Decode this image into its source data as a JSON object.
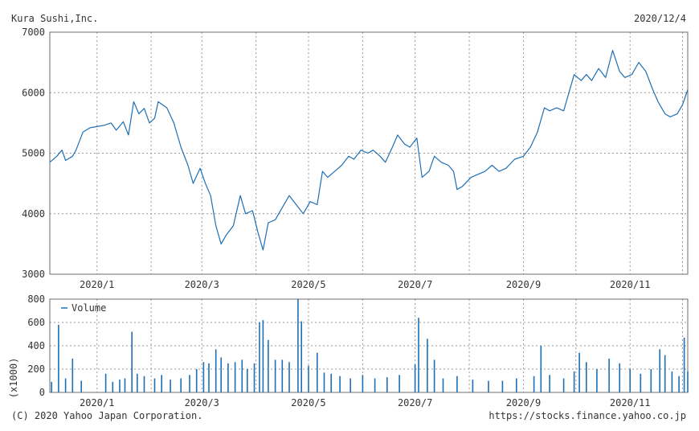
{
  "header": {
    "company": "Kura Sushi,Inc.",
    "date": "2020/12/4"
  },
  "footer": {
    "copyright": "(C) 2020 Yahoo Japan Corporation.",
    "url": "https://stocks.finance.yahoo.co.jp"
  },
  "colors": {
    "line": "#1f6fb5",
    "bar": "#1f6fb5"
  },
  "chart_data": [
    {
      "type": "line",
      "name": "price",
      "ylim": [
        3000,
        7000
      ],
      "yticks": [
        "3000",
        "4000",
        "5000",
        "6000",
        "7000"
      ],
      "xticks": [
        "2020/1",
        "2020/3",
        "2020/5",
        "2020/7",
        "2020/9",
        "2020/11"
      ],
      "xlim": [
        "2019-12-05",
        "2020-12-04"
      ],
      "grid": true,
      "series_points": [
        [
          "2019-12-05",
          4850
        ],
        [
          "2019-12-09",
          4950
        ],
        [
          "2019-12-12",
          5050
        ],
        [
          "2019-12-14",
          4880
        ],
        [
          "2019-12-18",
          4950
        ],
        [
          "2019-12-20",
          5050
        ],
        [
          "2019-12-24",
          5350
        ],
        [
          "2019-12-28",
          5420
        ],
        [
          "2020-01-05",
          5460
        ],
        [
          "2020-01-09",
          5500
        ],
        [
          "2020-01-12",
          5380
        ],
        [
          "2020-01-16",
          5520
        ],
        [
          "2020-01-19",
          5300
        ],
        [
          "2020-01-22",
          5850
        ],
        [
          "2020-01-25",
          5650
        ],
        [
          "2020-01-28",
          5740
        ],
        [
          "2020-01-31",
          5500
        ],
        [
          "2020-02-03",
          5580
        ],
        [
          "2020-02-05",
          5850
        ],
        [
          "2020-02-10",
          5750
        ],
        [
          "2020-02-14",
          5500
        ],
        [
          "2020-02-18",
          5100
        ],
        [
          "2020-02-22",
          4800
        ],
        [
          "2020-02-25",
          4500
        ],
        [
          "2020-02-29",
          4750
        ],
        [
          "2020-03-03",
          4500
        ],
        [
          "2020-03-06",
          4300
        ],
        [
          "2020-03-09",
          3800
        ],
        [
          "2020-03-12",
          3500
        ],
        [
          "2020-03-15",
          3650
        ],
        [
          "2020-03-19",
          3800
        ],
        [
          "2020-03-23",
          4300
        ],
        [
          "2020-03-26",
          4000
        ],
        [
          "2020-03-30",
          4050
        ],
        [
          "2020-04-02",
          3700
        ],
        [
          "2020-04-05",
          3400
        ],
        [
          "2020-04-08",
          3850
        ],
        [
          "2020-04-12",
          3900
        ],
        [
          "2020-04-16",
          4100
        ],
        [
          "2020-04-20",
          4300
        ],
        [
          "2020-04-24",
          4150
        ],
        [
          "2020-04-28",
          4000
        ],
        [
          "2020-05-02",
          4200
        ],
        [
          "2020-05-06",
          4150
        ],
        [
          "2020-05-09",
          4700
        ],
        [
          "2020-05-12",
          4600
        ],
        [
          "2020-05-16",
          4700
        ],
        [
          "2020-05-20",
          4800
        ],
        [
          "2020-05-24",
          4950
        ],
        [
          "2020-05-27",
          4900
        ],
        [
          "2020-05-31",
          5050
        ],
        [
          "2020-06-04",
          5000
        ],
        [
          "2020-06-07",
          5050
        ],
        [
          "2020-06-11",
          4950
        ],
        [
          "2020-06-14",
          4850
        ],
        [
          "2020-06-18",
          5100
        ],
        [
          "2020-06-21",
          5300
        ],
        [
          "2020-06-25",
          5150
        ],
        [
          "2020-06-28",
          5100
        ],
        [
          "2020-07-02",
          5250
        ],
        [
          "2020-07-05",
          4600
        ],
        [
          "2020-07-09",
          4700
        ],
        [
          "2020-07-12",
          4950
        ],
        [
          "2020-07-16",
          4850
        ],
        [
          "2020-07-20",
          4800
        ],
        [
          "2020-07-23",
          4700
        ],
        [
          "2020-07-25",
          4400
        ],
        [
          "2020-07-28",
          4450
        ],
        [
          "2020-08-02",
          4600
        ],
        [
          "2020-08-06",
          4650
        ],
        [
          "2020-08-10",
          4700
        ],
        [
          "2020-08-14",
          4800
        ],
        [
          "2020-08-18",
          4700
        ],
        [
          "2020-08-22",
          4750
        ],
        [
          "2020-08-27",
          4900
        ],
        [
          "2020-09-01",
          4950
        ],
        [
          "2020-09-05",
          5100
        ],
        [
          "2020-09-09",
          5350
        ],
        [
          "2020-09-13",
          5750
        ],
        [
          "2020-09-16",
          5700
        ],
        [
          "2020-09-20",
          5750
        ],
        [
          "2020-09-24",
          5700
        ],
        [
          "2020-09-27",
          6000
        ],
        [
          "2020-09-30",
          6300
        ],
        [
          "2020-10-04",
          6200
        ],
        [
          "2020-10-07",
          6300
        ],
        [
          "2020-10-10",
          6200
        ],
        [
          "2020-10-14",
          6400
        ],
        [
          "2020-10-18",
          6250
        ],
        [
          "2020-10-22",
          6700
        ],
        [
          "2020-10-26",
          6350
        ],
        [
          "2020-10-29",
          6250
        ],
        [
          "2020-11-02",
          6300
        ],
        [
          "2020-11-06",
          6500
        ],
        [
          "2020-11-10",
          6350
        ],
        [
          "2020-11-14",
          6050
        ],
        [
          "2020-11-17",
          5850
        ],
        [
          "2020-11-21",
          5650
        ],
        [
          "2020-11-24",
          5600
        ],
        [
          "2020-11-28",
          5650
        ],
        [
          "2020-12-01",
          5800
        ],
        [
          "2020-12-04",
          6050
        ]
      ]
    },
    {
      "type": "bar",
      "name": "volume",
      "legend": "Volume",
      "legend_placement": "top-left",
      "ylabel": "(x1000)",
      "ylim": [
        0,
        800
      ],
      "yticks": [
        "0",
        "200",
        "400",
        "600",
        "800"
      ],
      "xticks": [
        "2020/1",
        "2020/3",
        "2020/5",
        "2020/7",
        "2020/9",
        "2020/11"
      ],
      "xlim": [
        "2019-12-05",
        "2020-12-04"
      ],
      "grid": true,
      "series_points": [
        [
          "2019-12-06",
          90
        ],
        [
          "2019-12-10",
          580
        ],
        [
          "2019-12-14",
          120
        ],
        [
          "2019-12-18",
          290
        ],
        [
          "2019-12-23",
          100
        ],
        [
          "2020-01-06",
          160
        ],
        [
          "2020-01-10",
          90
        ],
        [
          "2020-01-14",
          110
        ],
        [
          "2020-01-17",
          120
        ],
        [
          "2020-01-21",
          520
        ],
        [
          "2020-01-24",
          160
        ],
        [
          "2020-01-28",
          140
        ],
        [
          "2020-02-03",
          120
        ],
        [
          "2020-02-07",
          150
        ],
        [
          "2020-02-12",
          110
        ],
        [
          "2020-02-18",
          120
        ],
        [
          "2020-02-23",
          150
        ],
        [
          "2020-02-27",
          200
        ],
        [
          "2020-03-02",
          260
        ],
        [
          "2020-03-05",
          250
        ],
        [
          "2020-03-09",
          370
        ],
        [
          "2020-03-12",
          300
        ],
        [
          "2020-03-16",
          250
        ],
        [
          "2020-03-20",
          260
        ],
        [
          "2020-03-24",
          280
        ],
        [
          "2020-03-27",
          200
        ],
        [
          "2020-03-31",
          250
        ],
        [
          "2020-04-03",
          600
        ],
        [
          "2020-04-05",
          620
        ],
        [
          "2020-04-08",
          450
        ],
        [
          "2020-04-12",
          280
        ],
        [
          "2020-04-16",
          280
        ],
        [
          "2020-04-20",
          260
        ],
        [
          "2020-04-25",
          800
        ],
        [
          "2020-04-27",
          610
        ],
        [
          "2020-05-01",
          230
        ],
        [
          "2020-05-06",
          340
        ],
        [
          "2020-05-10",
          170
        ],
        [
          "2020-05-14",
          160
        ],
        [
          "2020-05-19",
          140
        ],
        [
          "2020-05-25",
          120
        ],
        [
          "2020-06-01",
          150
        ],
        [
          "2020-06-08",
          120
        ],
        [
          "2020-06-15",
          130
        ],
        [
          "2020-06-22",
          150
        ],
        [
          "2020-07-01",
          240
        ],
        [
          "2020-07-03",
          640
        ],
        [
          "2020-07-08",
          460
        ],
        [
          "2020-07-12",
          280
        ],
        [
          "2020-07-17",
          120
        ],
        [
          "2020-07-25",
          140
        ],
        [
          "2020-08-03",
          110
        ],
        [
          "2020-08-12",
          100
        ],
        [
          "2020-08-20",
          100
        ],
        [
          "2020-08-28",
          120
        ],
        [
          "2020-09-07",
          140
        ],
        [
          "2020-09-11",
          400
        ],
        [
          "2020-09-16",
          150
        ],
        [
          "2020-09-24",
          120
        ],
        [
          "2020-09-30",
          180
        ],
        [
          "2020-10-03",
          340
        ],
        [
          "2020-10-07",
          260
        ],
        [
          "2020-10-13",
          200
        ],
        [
          "2020-10-20",
          290
        ],
        [
          "2020-10-26",
          250
        ],
        [
          "2020-11-01",
          200
        ],
        [
          "2020-11-07",
          160
        ],
        [
          "2020-11-13",
          200
        ],
        [
          "2020-11-18",
          370
        ],
        [
          "2020-11-21",
          320
        ],
        [
          "2020-11-25",
          180
        ],
        [
          "2020-11-29",
          140
        ],
        [
          "2020-12-02",
          470
        ],
        [
          "2020-12-04",
          180
        ]
      ]
    }
  ]
}
